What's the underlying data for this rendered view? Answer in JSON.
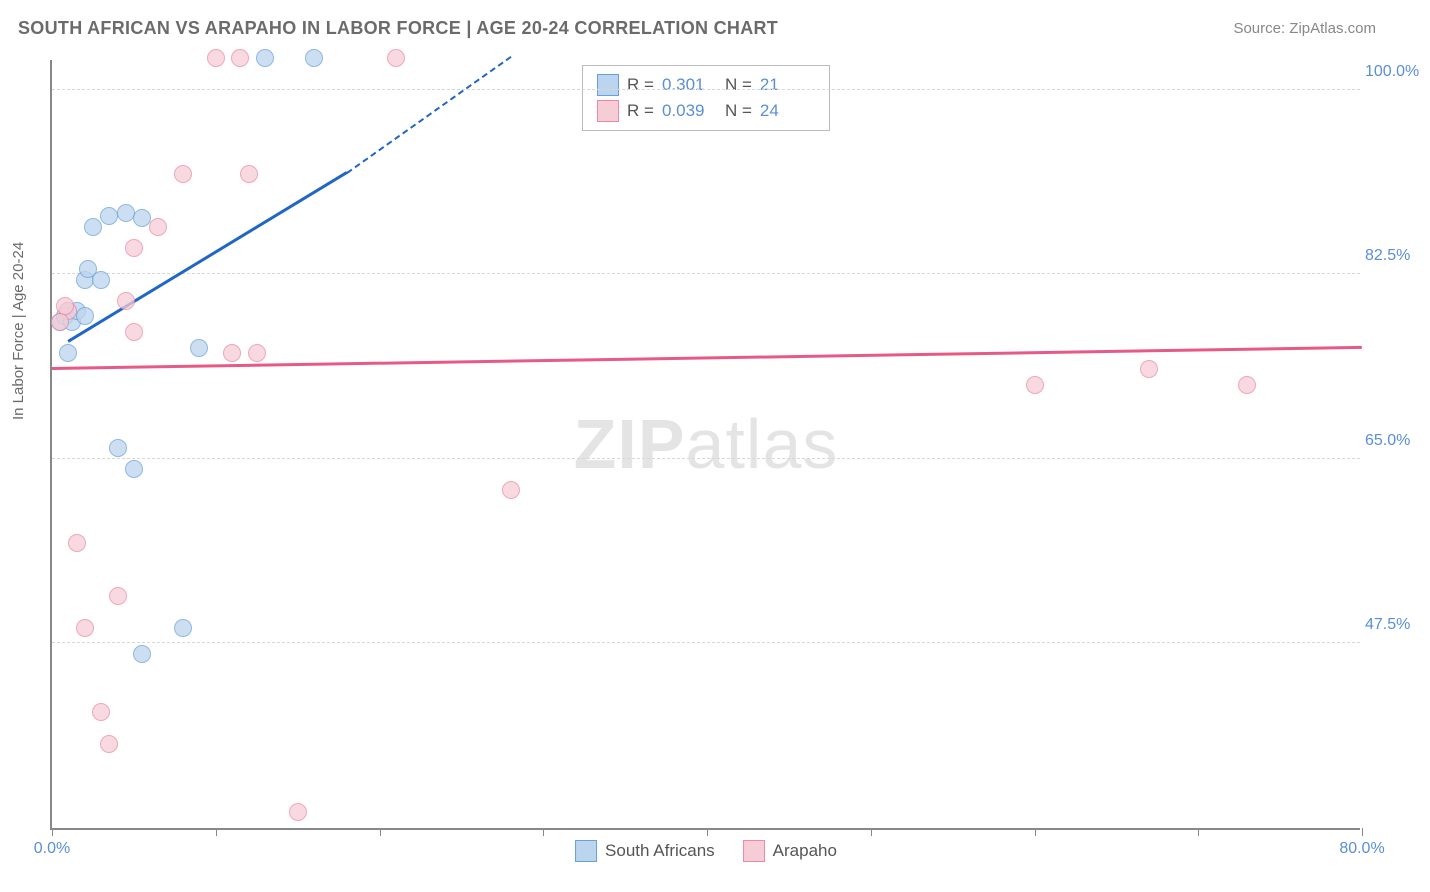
{
  "header": {
    "title": "SOUTH AFRICAN VS ARAPAHO IN LABOR FORCE | AGE 20-24 CORRELATION CHART",
    "source": "Source: ZipAtlas.com"
  },
  "watermark": {
    "bold": "ZIP",
    "light": "atlas"
  },
  "chart": {
    "type": "scatter",
    "ylabel": "In Labor Force | Age 20-24",
    "xlim": [
      0,
      80
    ],
    "ylim": [
      30,
      103
    ],
    "y_ticks": [
      47.5,
      65.0,
      82.5,
      100.0
    ],
    "y_tick_labels": [
      "47.5%",
      "65.0%",
      "82.5%",
      "100.0%"
    ],
    "x_ticks": [
      0,
      10,
      20,
      30,
      40,
      50,
      60,
      70,
      80
    ],
    "x_tick_labels": {
      "0": "0.0%",
      "80": "80.0%"
    },
    "background_color": "#ffffff",
    "grid_color": "#d7d7d7",
    "series": [
      {
        "name": "South Africans",
        "fill": "#bcd5ee",
        "stroke": "#6aa0d8",
        "opacity": 0.75,
        "marker_radius": 9,
        "r": "0.301",
        "n": "21",
        "trend": {
          "color": "#1f66c7",
          "x1": 1,
          "y1": 76,
          "x2": 18,
          "y2": 92,
          "dash_x2": 28,
          "dash_y2": 103
        },
        "points": [
          {
            "x": 1,
            "y": 79
          },
          {
            "x": 0.5,
            "y": 78
          },
          {
            "x": 0.8,
            "y": 78.5
          },
          {
            "x": 1.2,
            "y": 78
          },
          {
            "x": 1,
            "y": 75
          },
          {
            "x": 2,
            "y": 82
          },
          {
            "x": 3,
            "y": 82
          },
          {
            "x": 2.5,
            "y": 87
          },
          {
            "x": 3.5,
            "y": 88
          },
          {
            "x": 4.5,
            "y": 88.3
          },
          {
            "x": 5.5,
            "y": 87.8
          },
          {
            "x": 4,
            "y": 66
          },
          {
            "x": 5,
            "y": 64
          },
          {
            "x": 5.5,
            "y": 46.5
          },
          {
            "x": 9,
            "y": 75.5
          },
          {
            "x": 8,
            "y": 49
          },
          {
            "x": 13,
            "y": 103
          },
          {
            "x": 16,
            "y": 103
          },
          {
            "x": 1.5,
            "y": 79
          },
          {
            "x": 2,
            "y": 78.5
          },
          {
            "x": 2.2,
            "y": 83
          }
        ]
      },
      {
        "name": "Arapaho",
        "fill": "#f6cdd7",
        "stroke": "#e88ba3",
        "opacity": 0.75,
        "marker_radius": 9,
        "r": "0.039",
        "n": "24",
        "trend": {
          "color": "#e75a86",
          "x1": 0,
          "y1": 73.5,
          "x2": 80,
          "y2": 75.5
        },
        "points": [
          {
            "x": 1,
            "y": 79
          },
          {
            "x": 0.5,
            "y": 78
          },
          {
            "x": 0.8,
            "y": 79.5
          },
          {
            "x": 1.5,
            "y": 57
          },
          {
            "x": 2,
            "y": 49
          },
          {
            "x": 3,
            "y": 41
          },
          {
            "x": 3.5,
            "y": 38
          },
          {
            "x": 4,
            "y": 52
          },
          {
            "x": 4.5,
            "y": 80
          },
          {
            "x": 5,
            "y": 77
          },
          {
            "x": 5,
            "y": 85
          },
          {
            "x": 6.5,
            "y": 87
          },
          {
            "x": 8,
            "y": 92
          },
          {
            "x": 10,
            "y": 103
          },
          {
            "x": 11.5,
            "y": 103
          },
          {
            "x": 12,
            "y": 92
          },
          {
            "x": 11,
            "y": 75
          },
          {
            "x": 12.5,
            "y": 75
          },
          {
            "x": 15,
            "y": 31.5
          },
          {
            "x": 21,
            "y": 103
          },
          {
            "x": 28,
            "y": 62
          },
          {
            "x": 60,
            "y": 72
          },
          {
            "x": 67,
            "y": 73.5
          },
          {
            "x": 73,
            "y": 72
          }
        ]
      }
    ],
    "legend_top": {
      "r_label": "R  =",
      "n_label": "N  ="
    },
    "legend_bottom_labels": [
      "South Africans",
      "Arapaho"
    ]
  }
}
